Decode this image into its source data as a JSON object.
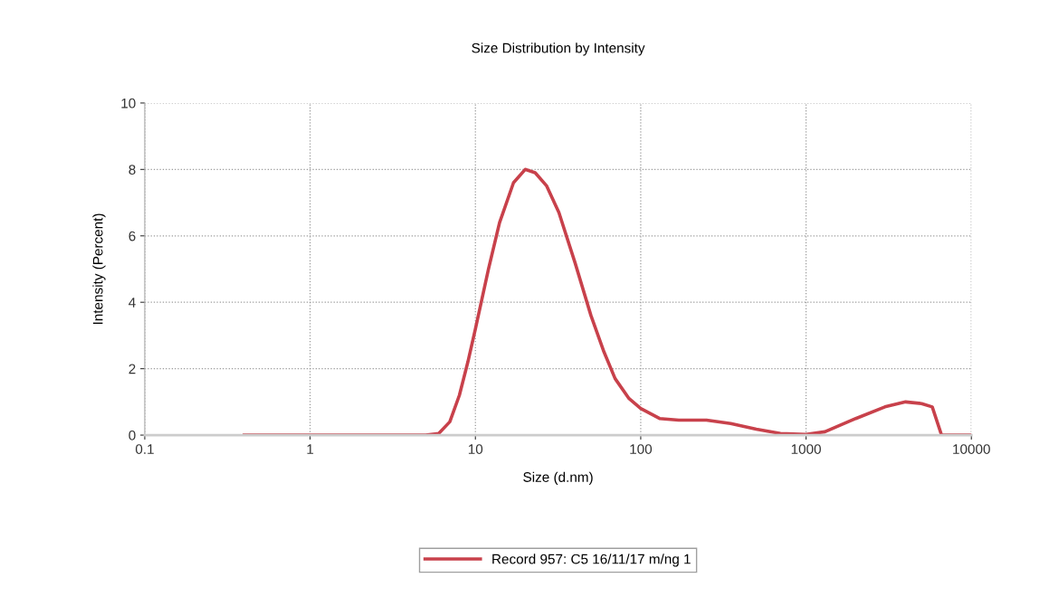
{
  "chart_data": {
    "type": "line",
    "title": "Size Distribution by Intensity",
    "xlabel": "Size (d.nm)",
    "ylabel": "Intensity (Percent)",
    "log": "x",
    "xlim": [
      0.1,
      10000
    ],
    "xticks": [
      {
        "value": 0.1,
        "label": "0.1"
      },
      {
        "value": 1,
        "label": "1"
      },
      {
        "value": 10,
        "label": "10"
      },
      {
        "value": 100,
        "label": "100"
      },
      {
        "value": 1000,
        "label": "1000"
      },
      {
        "value": 10000,
        "label": "10000"
      }
    ],
    "ylim": [
      0,
      10
    ],
    "yticks": [
      0,
      2,
      4,
      6,
      8,
      10
    ],
    "grid": true,
    "legend": "bottom",
    "line_style": "dotted",
    "series": [
      {
        "name": "Record 957: C5 16/11/17 m/ng 1",
        "color": "#c8414b",
        "line_style": "solid",
        "x": [
          0.4,
          1,
          3,
          5,
          6,
          7,
          8,
          9,
          10,
          12,
          14,
          17,
          20,
          23,
          27,
          32,
          40,
          50,
          60,
          70,
          85,
          100,
          130,
          170,
          250,
          350,
          500,
          700,
          1000,
          1300,
          2000,
          3000,
          4000,
          5000,
          5800,
          6600,
          10000
        ],
        "values": [
          0,
          0,
          0,
          0,
          0.05,
          0.4,
          1.2,
          2.2,
          3.2,
          5.0,
          6.4,
          7.6,
          8.0,
          7.9,
          7.5,
          6.7,
          5.2,
          3.6,
          2.5,
          1.7,
          1.1,
          0.8,
          0.5,
          0.45,
          0.45,
          0.35,
          0.18,
          0.05,
          0.02,
          0.1,
          0.5,
          0.85,
          1.0,
          0.95,
          0.85,
          0,
          0
        ]
      }
    ]
  }
}
